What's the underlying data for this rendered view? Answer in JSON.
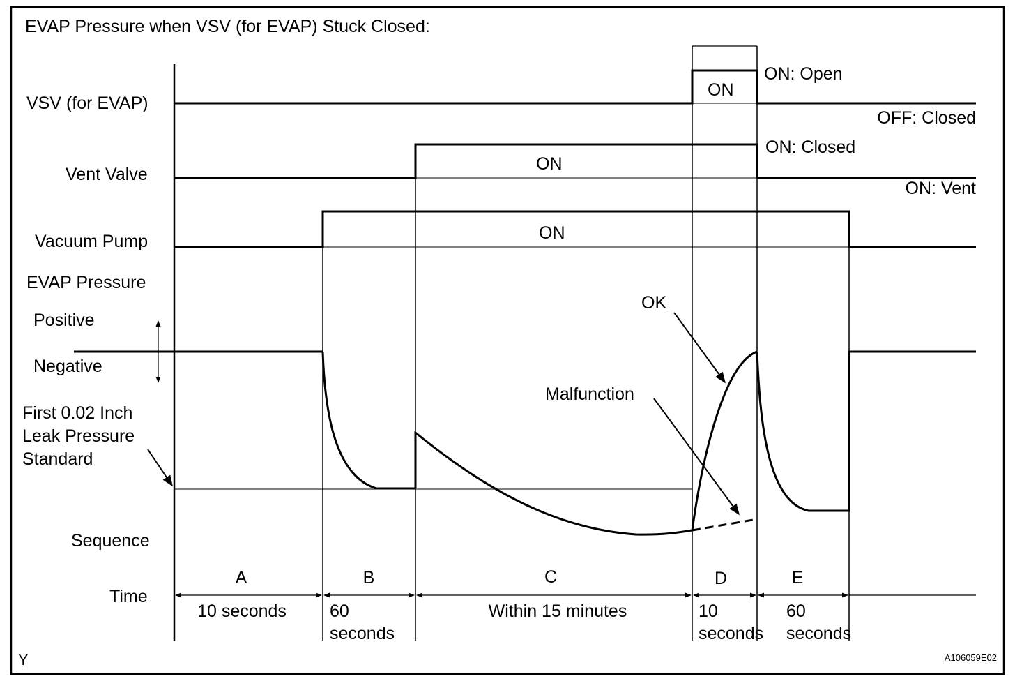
{
  "title": "EVAP Pressure when VSV (for EVAP) Stuck Closed:",
  "signals": {
    "vsv": {
      "label": "VSV (for EVAP)",
      "on_text": "ON",
      "state_high": "ON: Open",
      "state_low": "OFF: Closed"
    },
    "vent_valve": {
      "label": "Vent Valve",
      "on_text": "ON",
      "state_high": "ON: Closed",
      "state_low": "ON: Vent"
    },
    "vacuum_pump": {
      "label": "Vacuum Pump",
      "on_text": "ON"
    }
  },
  "pressure": {
    "label": "EVAP Pressure",
    "positive": "Positive",
    "negative": "Negative",
    "standard_label": [
      "First 0.02 Inch",
      "Leak Pressure",
      "Standard"
    ],
    "ok_label": "OK",
    "malfunction_label": "Malfunction"
  },
  "sequence_label": "Sequence",
  "time_label": "Time",
  "sequences": [
    {
      "id": "A",
      "duration": [
        "10 seconds"
      ]
    },
    {
      "id": "B",
      "duration": [
        "60",
        "seconds"
      ]
    },
    {
      "id": "C",
      "duration": [
        "Within 15 minutes"
      ]
    },
    {
      "id": "D",
      "duration": [
        "10",
        "seconds"
      ]
    },
    {
      "id": "E",
      "duration": [
        "60",
        "seconds"
      ]
    }
  ],
  "corner_mark": "Y",
  "figure_code": "A106059E02"
}
